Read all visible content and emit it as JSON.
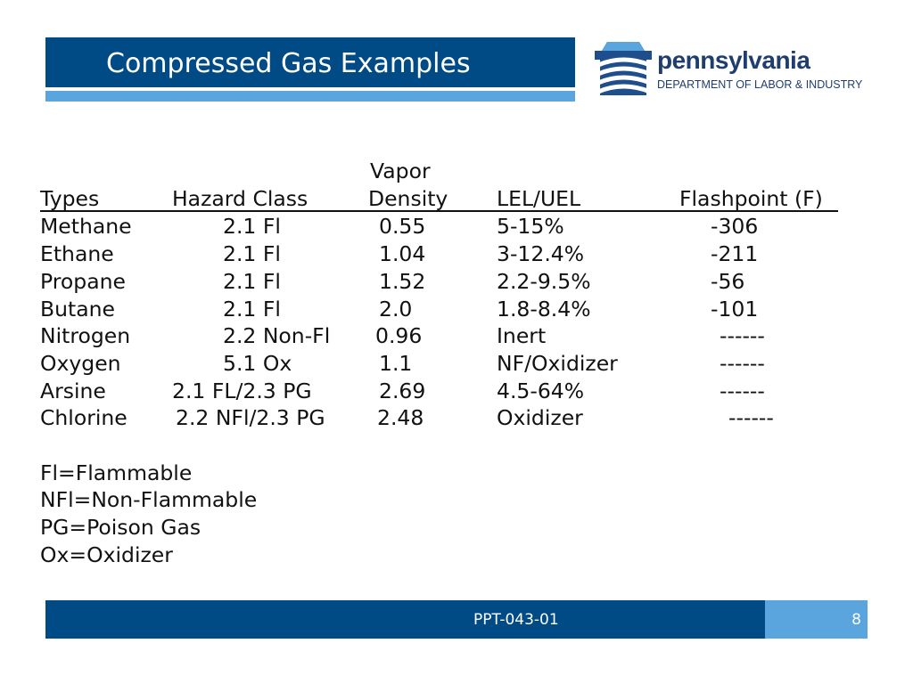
{
  "title": "Compressed Gas Examples",
  "logo": {
    "wordmark": "pennsylvania",
    "department": "DEPARTMENT OF LABOR & INDUSTRY"
  },
  "table": {
    "headers": {
      "types": "Types",
      "hazard_class": "Hazard Class",
      "vapor": "Vapor",
      "density": "Density",
      "lel_uel": "LEL/UEL",
      "flashpoint": "Flashpoint (F)"
    },
    "rows": [
      {
        "type": "Methane",
        "hazard": "2.1 Fl",
        "density": "0.55",
        "lel_uel": "5-15%",
        "flashpoint": "-306"
      },
      {
        "type": "Ethane",
        "hazard": "2.1 Fl",
        "density": "1.04",
        "lel_uel": "3-12.4%",
        "flashpoint": "-211"
      },
      {
        "type": "Propane",
        "hazard": "2.1 Fl",
        "density": "1.52",
        "lel_uel": "2.2-9.5%",
        "flashpoint": "-56"
      },
      {
        "type": "Butane",
        "hazard": "2.1 Fl",
        "density": "2.0",
        "lel_uel": "1.8-8.4%",
        "flashpoint": "-101"
      },
      {
        "type": "Nitrogen",
        "hazard": "2.2 Non-Fl",
        "density": "0.96",
        "lel_uel": "Inert",
        "flashpoint": "------"
      },
      {
        "type": "Oxygen",
        "hazard": "5.1 Ox",
        "density": "1.1",
        "lel_uel": "NF/Oxidizer",
        "flashpoint": "------"
      },
      {
        "type": "Arsine",
        "hazard": "2.1 FL/2.3 PG",
        "density": "2.69",
        "lel_uel": "4.5-64%",
        "flashpoint": "------"
      },
      {
        "type": "Chlorine",
        "hazard": "2.2 NFl/2.3 PG",
        "density": "2.48",
        "lel_uel": "Oxidizer",
        "flashpoint": "------"
      }
    ]
  },
  "legend": [
    "Fl=Flammable",
    "NFl=Non-Flammable",
    "PG=Poison Gas",
    "Ox=Oxidizer"
  ],
  "footer": {
    "code": "PPT-043-01",
    "page_number": "8"
  },
  "colors": {
    "title_bar": "#004a86",
    "accent_bar": "#5aa5dd",
    "logo_text": "#1f3e6e"
  }
}
